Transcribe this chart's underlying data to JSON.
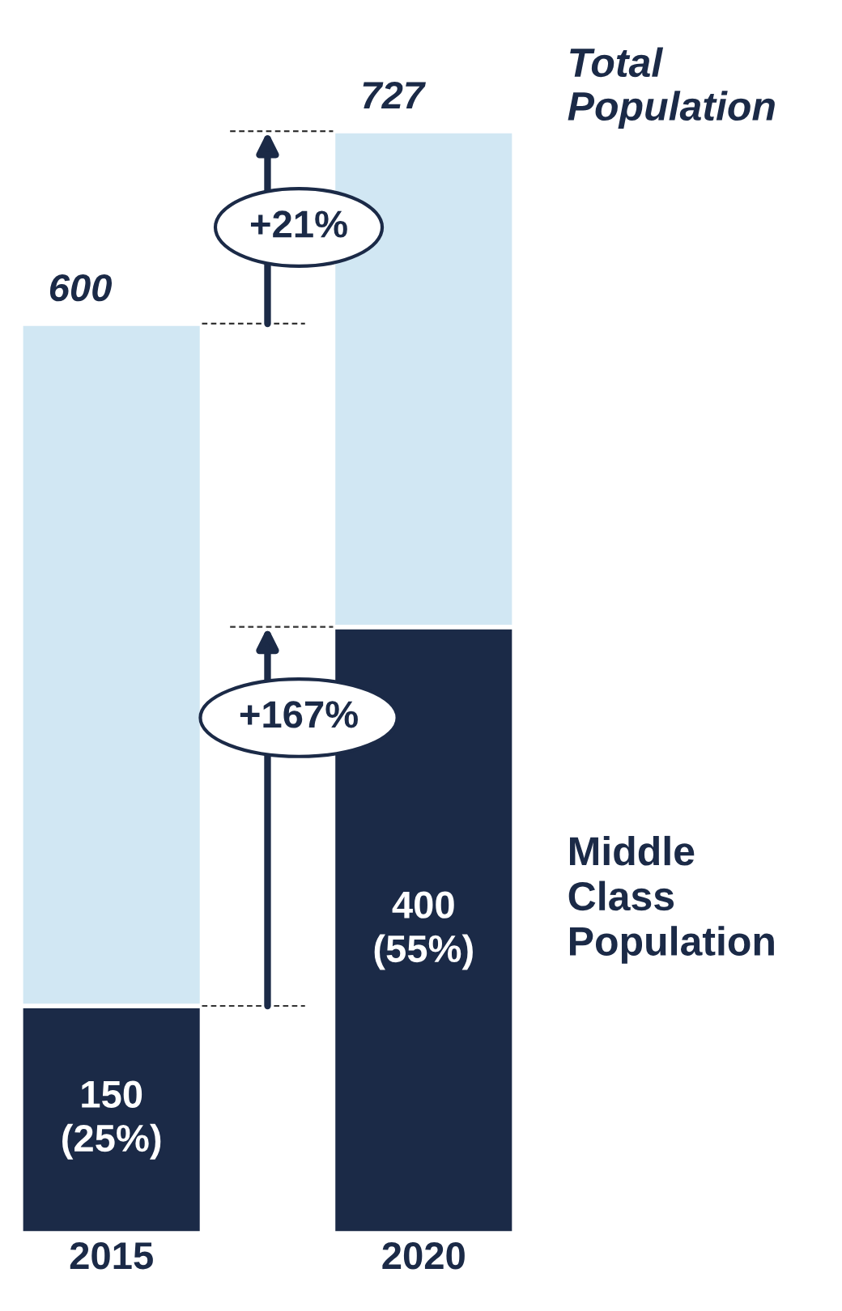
{
  "chart_data": {
    "type": "bar",
    "stacked": true,
    "categories": [
      "2015",
      "2020"
    ],
    "series": [
      {
        "name": "Middle Class Population",
        "color": "#1b2a47",
        "values": [
          150,
          400
        ],
        "value_labels": [
          "150\n(25%)",
          "400\n(55%)"
        ]
      },
      {
        "name": "Total Population",
        "color": "#d1e7f3",
        "values": [
          450,
          327
        ]
      }
    ],
    "totals": [
      "600",
      "727"
    ],
    "annotations": [
      "+21%",
      "+167%"
    ],
    "tick_labels": "x",
    "legend": false,
    "grid": false
  }
}
